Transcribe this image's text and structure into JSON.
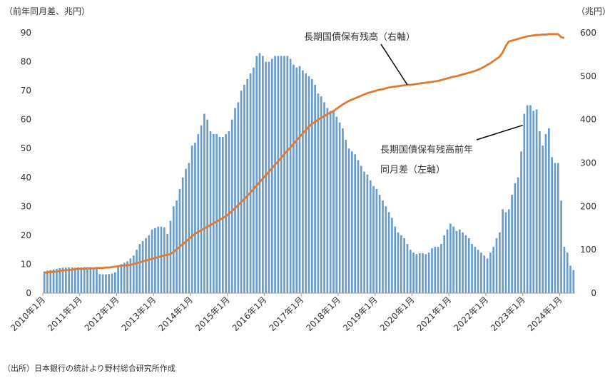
{
  "chart_data": {
    "type": "bar+line",
    "left_axis_label": "（前年同月差、兆円）",
    "right_axis_label": "（兆円）",
    "left_ylim": [
      0,
      90
    ],
    "left_yticks": [
      0,
      10,
      20,
      30,
      40,
      50,
      60,
      70,
      80,
      90
    ],
    "right_ylim": [
      0,
      600
    ],
    "right_yticks": [
      0,
      100,
      200,
      300,
      400,
      500,
      600
    ],
    "x_tick_labels": [
      "2010年1月",
      "2011年1月",
      "2012年1月",
      "2013年1月",
      "2014年1月",
      "2015年1月",
      "2016年1月",
      "2017年1月",
      "2018年1月",
      "2019年1月",
      "2020年1月",
      "2021年1月",
      "2022年1月",
      "2023年1月",
      "2024年1月"
    ],
    "grid": false,
    "series": [
      {
        "name": "長期国債保有残高前年同月差（左軸）",
        "type": "bar",
        "axis": "left",
        "color": "#6a9ccb",
        "values": [
          7.5,
          7.8,
          8,
          8.2,
          8.4,
          8.6,
          8.8,
          8.8,
          8.9,
          8.9,
          8.8,
          8.9,
          8.9,
          9,
          9,
          9,
          8.8,
          8.5,
          6.6,
          6.5,
          6.5,
          6.6,
          6.8,
          7.2,
          9,
          10,
          10.5,
          11,
          12,
          13,
          15,
          17,
          18,
          19,
          20,
          22,
          22.5,
          23,
          23,
          22.8,
          20.5,
          25,
          30,
          32,
          36,
          40,
          43,
          45,
          51,
          52,
          55,
          58,
          62,
          60,
          56,
          55,
          55,
          54,
          54,
          55,
          56,
          60,
          64,
          66,
          70,
          72,
          74,
          76,
          78,
          82,
          83,
          82,
          80,
          80,
          81,
          82,
          82,
          82,
          82,
          82,
          81,
          79,
          78,
          78.5,
          77,
          76,
          75,
          74,
          72,
          69,
          68,
          66,
          64,
          63,
          63,
          61,
          59,
          57,
          53,
          50,
          49,
          48,
          46,
          44,
          42,
          41,
          39,
          37,
          36,
          34,
          32,
          30,
          28,
          26,
          23,
          21,
          20,
          19,
          17,
          15,
          14,
          13.5,
          13.8,
          13.8,
          13.5,
          14,
          15.5,
          16,
          16,
          17,
          20,
          22,
          24,
          23,
          21.5,
          22,
          21,
          20,
          19,
          17,
          16,
          15,
          14,
          13,
          12,
          14,
          16,
          19,
          21,
          29,
          28,
          29,
          34,
          38,
          40,
          49,
          62,
          65,
          65,
          63,
          63.5,
          56,
          51,
          55,
          57,
          47,
          45,
          45,
          32,
          16,
          14,
          9.5,
          8
        ]
      },
      {
        "name": "長期国債保有残高（右軸）",
        "type": "line",
        "axis": "right",
        "color": "#e07a2f",
        "values": [
          47,
          48,
          49,
          49,
          50,
          51,
          52,
          53,
          53,
          54,
          55,
          56,
          56,
          56,
          57,
          57,
          57,
          58,
          58,
          58,
          59,
          59,
          60,
          61,
          62,
          63,
          64,
          64,
          65,
          67,
          69,
          71,
          73,
          75,
          77,
          79,
          81,
          83,
          85,
          87,
          88,
          90,
          95,
          101,
          107,
          113,
          119,
          125,
          131,
          137,
          141,
          145,
          149,
          153,
          157,
          161,
          165,
          169,
          173,
          177,
          183,
          189,
          196,
          203,
          210,
          217,
          224,
          232,
          240,
          248,
          256,
          264,
          272,
          280,
          288,
          296,
          304,
          312,
          320,
          328,
          336,
          344,
          352,
          360,
          368,
          376,
          384,
          390,
          395,
          400,
          404,
          408,
          412,
          416,
          420,
          425,
          430,
          435,
          439,
          443,
          446,
          449,
          452,
          455,
          458,
          461,
          463,
          465,
          467,
          469,
          470,
          472,
          474,
          475,
          476,
          477,
          478,
          479,
          480,
          480,
          481,
          482,
          483,
          484,
          485,
          486,
          487,
          488,
          489,
          491,
          493,
          495,
          497,
          499,
          500,
          502,
          504,
          506,
          508,
          510,
          512,
          515,
          518,
          522,
          526,
          530,
          535,
          540,
          545,
          555,
          570,
          580,
          582,
          584,
          586,
          588,
          590,
          592,
          593,
          594,
          595,
          595,
          596,
          596,
          597,
          597,
          597,
          597,
          590,
          588
        ]
      }
    ],
    "annotations": [
      {
        "lines": [
          "長期国債保有残高（右軸）"
        ],
        "target_series": 1,
        "target_index": 118
      },
      {
        "lines": [
          "長期国債保有残高前年",
          "同月差（左軸）"
        ],
        "target_series": 0,
        "target_index": 156
      }
    ],
    "source": "（出所）日本銀行の統計より野村総合研究所作成"
  }
}
